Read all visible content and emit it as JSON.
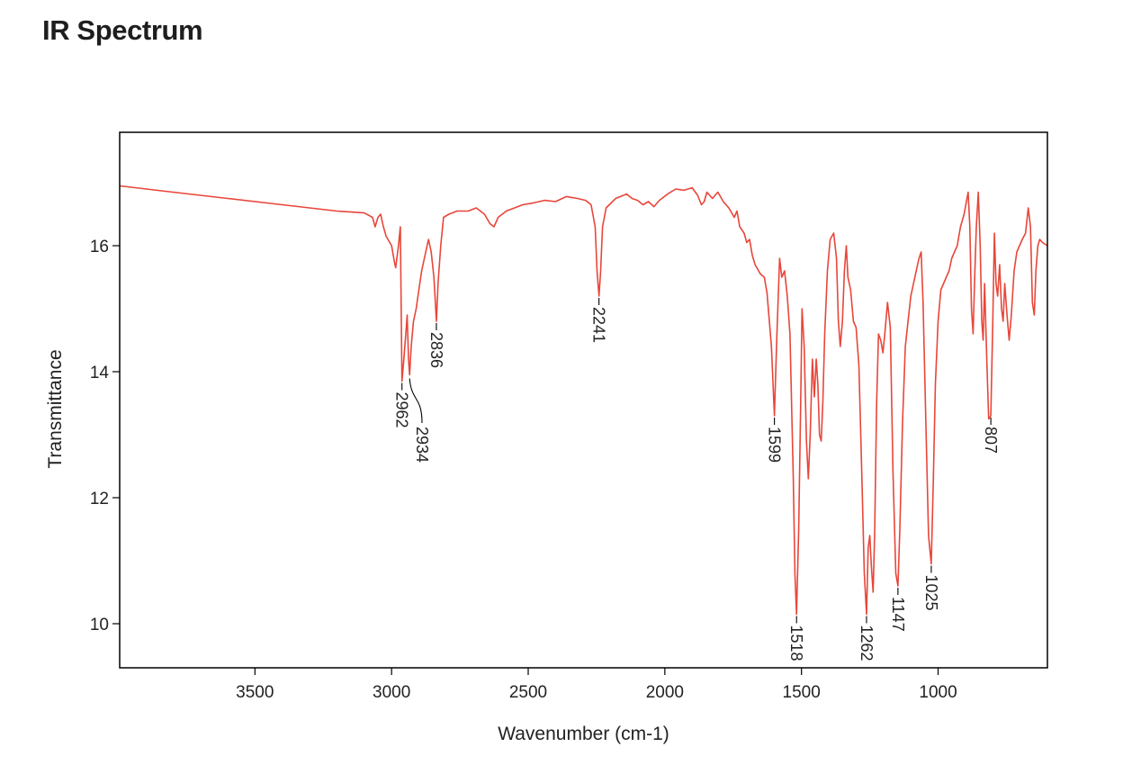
{
  "page": {
    "heading": "IR Spectrum"
  },
  "colors": {
    "spectrum": "#e8463a",
    "frame": "#000000",
    "text": "#222222"
  },
  "chart_data": {
    "type": "line",
    "title": "",
    "xlabel": "Wavenumber (cm-1)",
    "ylabel": "Transmittance",
    "xlim": [
      3995,
      600
    ],
    "x_reversed": true,
    "ylim": [
      9.3,
      17.8
    ],
    "xticks": [
      {
        "value": 3500,
        "label": "3500"
      },
      {
        "value": 3000,
        "label": "3000"
      },
      {
        "value": 2500,
        "label": "2500"
      },
      {
        "value": 2000,
        "label": "2000"
      },
      {
        "value": 1500,
        "label": "1500"
      },
      {
        "value": 1000,
        "label": "1000"
      }
    ],
    "yticks": [
      {
        "value": 16,
        "label": "16"
      },
      {
        "value": 14,
        "label": "14"
      },
      {
        "value": 12,
        "label": "12"
      },
      {
        "value": 10,
        "label": "10"
      }
    ],
    "grid": false,
    "series": [
      {
        "color": "#e8463a",
        "points": [
          [
            3995,
            16.95
          ],
          [
            3800,
            16.85
          ],
          [
            3600,
            16.75
          ],
          [
            3400,
            16.65
          ],
          [
            3200,
            16.55
          ],
          [
            3100,
            16.52
          ],
          [
            3070,
            16.45
          ],
          [
            3060,
            16.3
          ],
          [
            3050,
            16.45
          ],
          [
            3040,
            16.5
          ],
          [
            3030,
            16.3
          ],
          [
            3020,
            16.15
          ],
          [
            3000,
            16.0
          ],
          [
            2990,
            15.75
          ],
          [
            2985,
            15.65
          ],
          [
            2975,
            16.0
          ],
          [
            2968,
            16.3
          ],
          [
            2962,
            13.85
          ],
          [
            2955,
            14.2
          ],
          [
            2948,
            14.6
          ],
          [
            2943,
            14.9
          ],
          [
            2938,
            14.2
          ],
          [
            2934,
            13.95
          ],
          [
            2928,
            14.4
          ],
          [
            2920,
            14.8
          ],
          [
            2910,
            15.0
          ],
          [
            2900,
            15.3
          ],
          [
            2890,
            15.6
          ],
          [
            2880,
            15.8
          ],
          [
            2865,
            16.1
          ],
          [
            2855,
            15.9
          ],
          [
            2845,
            15.5
          ],
          [
            2836,
            14.8
          ],
          [
            2830,
            15.4
          ],
          [
            2820,
            16.0
          ],
          [
            2810,
            16.45
          ],
          [
            2790,
            16.5
          ],
          [
            2760,
            16.55
          ],
          [
            2720,
            16.55
          ],
          [
            2690,
            16.6
          ],
          [
            2660,
            16.5
          ],
          [
            2640,
            16.35
          ],
          [
            2625,
            16.3
          ],
          [
            2610,
            16.45
          ],
          [
            2580,
            16.55
          ],
          [
            2520,
            16.65
          ],
          [
            2480,
            16.68
          ],
          [
            2440,
            16.72
          ],
          [
            2400,
            16.7
          ],
          [
            2360,
            16.78
          ],
          [
            2320,
            16.75
          ],
          [
            2290,
            16.72
          ],
          [
            2270,
            16.65
          ],
          [
            2255,
            16.3
          ],
          [
            2248,
            15.6
          ],
          [
            2241,
            15.2
          ],
          [
            2235,
            15.6
          ],
          [
            2228,
            16.3
          ],
          [
            2215,
            16.6
          ],
          [
            2180,
            16.75
          ],
          [
            2140,
            16.82
          ],
          [
            2120,
            16.75
          ],
          [
            2100,
            16.72
          ],
          [
            2080,
            16.65
          ],
          [
            2060,
            16.7
          ],
          [
            2040,
            16.62
          ],
          [
            2020,
            16.72
          ],
          [
            1990,
            16.82
          ],
          [
            1960,
            16.9
          ],
          [
            1930,
            16.88
          ],
          [
            1900,
            16.92
          ],
          [
            1880,
            16.8
          ],
          [
            1866,
            16.65
          ],
          [
            1856,
            16.7
          ],
          [
            1846,
            16.85
          ],
          [
            1826,
            16.75
          ],
          [
            1806,
            16.85
          ],
          [
            1786,
            16.7
          ],
          [
            1766,
            16.6
          ],
          [
            1746,
            16.45
          ],
          [
            1736,
            16.55
          ],
          [
            1726,
            16.3
          ],
          [
            1710,
            16.2
          ],
          [
            1700,
            16.05
          ],
          [
            1690,
            16.1
          ],
          [
            1680,
            15.85
          ],
          [
            1670,
            15.7
          ],
          [
            1650,
            15.55
          ],
          [
            1636,
            15.5
          ],
          [
            1626,
            15.25
          ],
          [
            1610,
            14.4
          ],
          [
            1599,
            13.3
          ],
          [
            1590,
            14.6
          ],
          [
            1580,
            15.8
          ],
          [
            1572,
            15.5
          ],
          [
            1562,
            15.6
          ],
          [
            1552,
            15.2
          ],
          [
            1542,
            14.6
          ],
          [
            1530,
            12.3
          ],
          [
            1524,
            10.8
          ],
          [
            1518,
            10.15
          ],
          [
            1510,
            11.5
          ],
          [
            1503,
            13.5
          ],
          [
            1498,
            15.0
          ],
          [
            1490,
            14.4
          ],
          [
            1482,
            12.9
          ],
          [
            1475,
            12.3
          ],
          [
            1468,
            13.0
          ],
          [
            1460,
            14.2
          ],
          [
            1453,
            13.6
          ],
          [
            1446,
            14.2
          ],
          [
            1440,
            13.8
          ],
          [
            1434,
            13.0
          ],
          [
            1428,
            12.9
          ],
          [
            1422,
            13.5
          ],
          [
            1415,
            14.6
          ],
          [
            1405,
            15.6
          ],
          [
            1395,
            16.1
          ],
          [
            1382,
            16.2
          ],
          [
            1372,
            15.8
          ],
          [
            1365,
            14.8
          ],
          [
            1358,
            14.4
          ],
          [
            1350,
            14.8
          ],
          [
            1343,
            15.6
          ],
          [
            1336,
            16.0
          ],
          [
            1330,
            15.5
          ],
          [
            1320,
            15.3
          ],
          [
            1310,
            14.8
          ],
          [
            1300,
            14.7
          ],
          [
            1290,
            14.1
          ],
          [
            1280,
            12.5
          ],
          [
            1270,
            10.8
          ],
          [
            1262,
            10.15
          ],
          [
            1256,
            11.2
          ],
          [
            1250,
            11.4
          ],
          [
            1244,
            10.9
          ],
          [
            1238,
            10.5
          ],
          [
            1232,
            11.5
          ],
          [
            1225,
            13.5
          ],
          [
            1218,
            14.6
          ],
          [
            1210,
            14.5
          ],
          [
            1202,
            14.3
          ],
          [
            1195,
            14.6
          ],
          [
            1185,
            15.1
          ],
          [
            1175,
            14.7
          ],
          [
            1165,
            12.4
          ],
          [
            1155,
            10.8
          ],
          [
            1147,
            10.6
          ],
          [
            1140,
            11.5
          ],
          [
            1130,
            13.2
          ],
          [
            1120,
            14.4
          ],
          [
            1110,
            14.8
          ],
          [
            1100,
            15.2
          ],
          [
            1090,
            15.4
          ],
          [
            1080,
            15.6
          ],
          [
            1070,
            15.8
          ],
          [
            1062,
            15.9
          ],
          [
            1055,
            15.1
          ],
          [
            1045,
            13.2
          ],
          [
            1035,
            11.4
          ],
          [
            1025,
            10.95
          ],
          [
            1018,
            12.2
          ],
          [
            1010,
            13.8
          ],
          [
            1000,
            14.8
          ],
          [
            990,
            15.3
          ],
          [
            980,
            15.4
          ],
          [
            970,
            15.5
          ],
          [
            960,
            15.6
          ],
          [
            950,
            15.8
          ],
          [
            940,
            15.9
          ],
          [
            930,
            16.0
          ],
          [
            918,
            16.3
          ],
          [
            905,
            16.5
          ],
          [
            890,
            16.85
          ],
          [
            884,
            16.3
          ],
          [
            878,
            15.0
          ],
          [
            872,
            14.6
          ],
          [
            866,
            15.5
          ],
          [
            860,
            16.3
          ],
          [
            853,
            16.85
          ],
          [
            846,
            16.0
          ],
          [
            840,
            14.8
          ],
          [
            835,
            14.5
          ],
          [
            830,
            15.4
          ],
          [
            822,
            14.2
          ],
          [
            815,
            13.25
          ],
          [
            807,
            13.3
          ],
          [
            800,
            14.8
          ],
          [
            794,
            16.2
          ],
          [
            788,
            15.4
          ],
          [
            782,
            15.2
          ],
          [
            775,
            15.7
          ],
          [
            768,
            15.0
          ],
          [
            762,
            14.8
          ],
          [
            756,
            15.4
          ],
          [
            748,
            14.9
          ],
          [
            740,
            14.5
          ],
          [
            732,
            14.9
          ],
          [
            722,
            15.6
          ],
          [
            712,
            15.9
          ],
          [
            702,
            16.0
          ],
          [
            692,
            16.1
          ],
          [
            680,
            16.2
          ],
          [
            670,
            16.6
          ],
          [
            662,
            16.3
          ],
          [
            655,
            15.1
          ],
          [
            648,
            14.9
          ],
          [
            642,
            15.6
          ],
          [
            635,
            16.0
          ],
          [
            628,
            16.1
          ],
          [
            618,
            16.05
          ],
          [
            600,
            16.0
          ]
        ]
      }
    ],
    "annotations": [
      {
        "label": "2962",
        "x": 2962,
        "y": 13.85
      },
      {
        "label": "2934",
        "x": 2934,
        "y": 13.95
      },
      {
        "label": "2836",
        "x": 2836,
        "y": 14.8
      },
      {
        "label": "2241",
        "x": 2241,
        "y": 15.2
      },
      {
        "label": "1599",
        "x": 1599,
        "y": 13.3
      },
      {
        "label": "1518",
        "x": 1518,
        "y": 10.15
      },
      {
        "label": "1262",
        "x": 1262,
        "y": 10.15
      },
      {
        "label": "1147",
        "x": 1147,
        "y": 10.6
      },
      {
        "label": "1025",
        "x": 1025,
        "y": 10.95
      },
      {
        "label": "807",
        "x": 807,
        "y": 13.3
      }
    ]
  }
}
